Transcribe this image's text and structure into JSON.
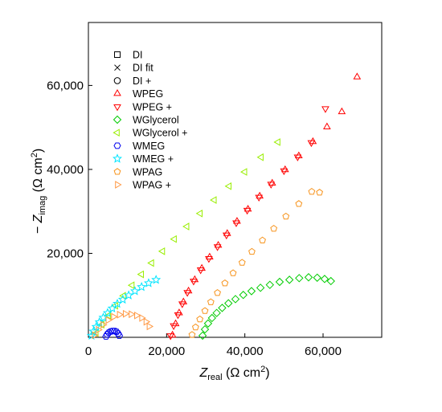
{
  "chart_data": {
    "type": "scatter",
    "title": "",
    "xlabel": {
      "main": "Z",
      "sub": "real",
      "unit": " (Ω cm",
      "sup": "2",
      "close": ")"
    },
    "ylabel": {
      "prefix": "− Z",
      "sub": "imag",
      "unit": " (Ω cm",
      "sup": "2",
      "close": ")"
    },
    "xlim": [
      0,
      75000
    ],
    "ylim": [
      0,
      75000
    ],
    "xticks": [
      0,
      20000,
      40000,
      60000
    ],
    "yticks": [
      0,
      20000,
      40000,
      60000
    ],
    "xtick_labels": [
      "0",
      "20,000",
      "40,000",
      "60,000"
    ],
    "ytick_labels": [
      "",
      "20,000",
      "40,000",
      "60,000"
    ],
    "grid": false,
    "legend_position": "top-left",
    "series": [
      {
        "name": "DI",
        "marker": "square",
        "color": "#000000",
        "x": [],
        "y": []
      },
      {
        "name": "DI fit",
        "marker": "x",
        "color": "#000000",
        "x": [],
        "y": []
      },
      {
        "name": "DI +",
        "marker": "circle",
        "color": "#000000",
        "x": [],
        "y": []
      },
      {
        "name": "WPEG",
        "marker": "triangle-up",
        "color": "#ff0000",
        "x": [
          21500,
          22300,
          23200,
          24300,
          25600,
          27200,
          29000,
          31000,
          33200,
          35500,
          38000,
          40800,
          43800,
          47000,
          50300,
          53800,
          57400,
          61000,
          64800,
          68700
        ],
        "y": [
          500,
          3200,
          5800,
          8400,
          11000,
          13700,
          16400,
          19100,
          21900,
          24700,
          27600,
          30500,
          33600,
          36700,
          39900,
          43200,
          46600,
          50100,
          53700,
          62000
        ]
      },
      {
        "name": "WPEG +",
        "marker": "triangle-down",
        "color": "#ff0000",
        "x": [
          21000,
          21800,
          22900,
          24000,
          25300,
          26900,
          28700,
          30800,
          33000,
          35300,
          37800,
          40600,
          43600,
          46700,
          50000,
          53500,
          57000,
          60600
        ],
        "y": [
          400,
          2800,
          5400,
          8000,
          10700,
          13400,
          16100,
          18800,
          21600,
          24400,
          27300,
          30300,
          33400,
          36500,
          39700,
          43000,
          46400,
          54500
        ]
      },
      {
        "name": "WGlycerol",
        "marker": "diamond",
        "color": "#00cc00",
        "x": [
          29200,
          29800,
          30600,
          31600,
          32800,
          34200,
          35800,
          37600,
          39600,
          41700,
          44000,
          46400,
          48900,
          51400,
          53900,
          56300,
          58500,
          60400,
          62000
        ],
        "y": [
          400,
          1900,
          3300,
          4600,
          5800,
          7000,
          8100,
          9100,
          10100,
          11000,
          11800,
          12500,
          13200,
          13700,
          14100,
          14300,
          14200,
          13900,
          13400
        ]
      },
      {
        "name": "WGlycerol +",
        "marker": "triangle-left",
        "color": "#99ee00",
        "x": [
          2000,
          3500,
          5200,
          7000,
          9000,
          11200,
          13600,
          16200,
          19000,
          22000,
          25200,
          28600,
          32200,
          36000,
          40000,
          44200,
          48500
        ],
        "y": [
          1000,
          3000,
          5200,
          7500,
          9900,
          12400,
          15000,
          17700,
          20500,
          23400,
          26400,
          29500,
          32700,
          36000,
          39400,
          42900,
          46500
        ]
      },
      {
        "name": "WMEG",
        "marker": "hexagon",
        "color": "#0000ee",
        "x": [
          4500,
          4800,
          5200,
          5700,
          6200,
          6700,
          7200,
          7600,
          7900
        ],
        "y": [
          200,
          700,
          1100,
          1400,
          1500,
          1500,
          1300,
          900,
          400
        ]
      },
      {
        "name": "WMEG +",
        "marker": "star",
        "color": "#00e5ff",
        "x": [
          800,
          1300,
          2000,
          2800,
          3800,
          4900,
          6100,
          7400,
          8800,
          10300,
          11900,
          13600,
          15400,
          17300
        ],
        "y": [
          400,
          1400,
          2500,
          3600,
          4700,
          5800,
          6900,
          8000,
          9000,
          10000,
          11000,
          12000,
          12900,
          13700
        ]
      },
      {
        "name": "WPAG",
        "marker": "pentagon",
        "color": "#f7941d",
        "x": [
          26500,
          27400,
          28500,
          29800,
          31300,
          33000,
          34900,
          37000,
          39300,
          41800,
          44500,
          47400,
          50500,
          53800,
          57100,
          59100
        ],
        "y": [
          600,
          2400,
          4300,
          6300,
          8400,
          10600,
          12900,
          15300,
          17800,
          20400,
          23100,
          25900,
          28800,
          31800,
          34700,
          34500
        ]
      },
      {
        "name": "WPAG +",
        "marker": "triangle-right",
        "color": "#ff9944",
        "x": [
          1500,
          2500,
          3700,
          5000,
          6400,
          7900,
          9400,
          10900,
          12300,
          13600,
          14700,
          15500
        ],
        "y": [
          500,
          1800,
          3000,
          4100,
          4900,
          5400,
          5600,
          5500,
          5200,
          4600,
          3700,
          2600
        ]
      }
    ]
  }
}
